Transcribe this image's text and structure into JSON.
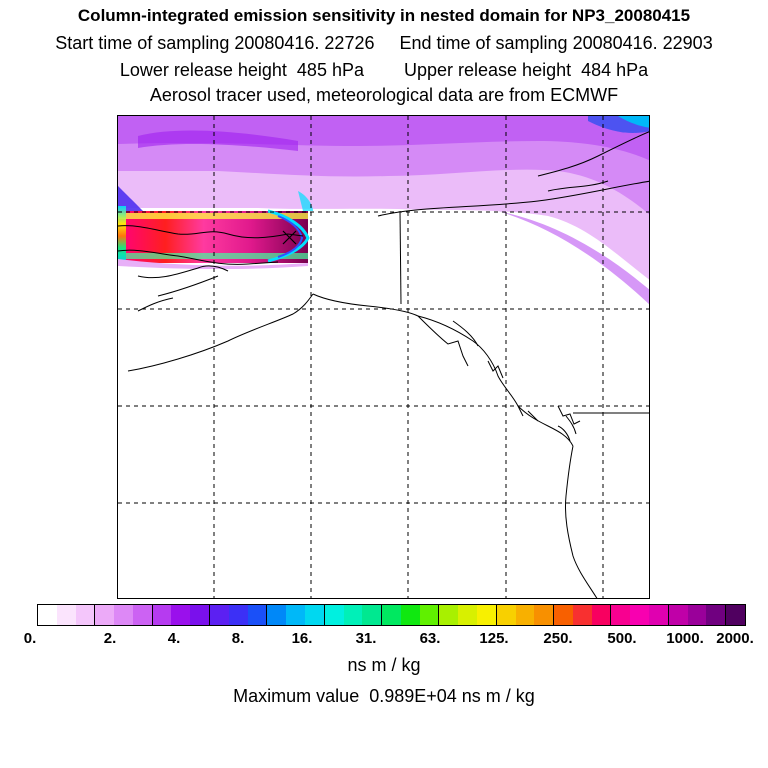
{
  "header": {
    "title": "Column-integrated emission sensitivity in nested domain for NP3_20080415",
    "line2": "Start time of sampling 20080416. 22726     End time of sampling 20080416. 22903",
    "line3": "Lower release height  485 hPa        Upper release height  484 hPa",
    "line4": "Aerosol tracer used, meteorological data are from ECMWF"
  },
  "colorbar": {
    "colors": [
      "#ffffff",
      "#fbe4fd",
      "#f4c6fb",
      "#ecaaf8",
      "#dd88f6",
      "#cc62f3",
      "#b63bf0",
      "#9a10ec",
      "#7a10ec",
      "#5c20f2",
      "#3c30f6",
      "#1a50f8",
      "#0088f8",
      "#00b8f8",
      "#00d8f0",
      "#00f0e0",
      "#00f0b8",
      "#00e890",
      "#00e860",
      "#10e810",
      "#60f000",
      "#a8f000",
      "#d8f000",
      "#f8f000",
      "#f8d000",
      "#f8b000",
      "#f89000",
      "#f86000",
      "#f83030",
      "#f80060",
      "#f80090",
      "#f800b0",
      "#e000b0",
      "#c000a8",
      "#9a009a",
      "#700080",
      "#500060"
    ],
    "tick_labels": [
      "0.",
      "2.",
      "4.",
      "8.",
      "16.",
      "31.",
      "63.",
      "125.",
      "250.",
      "500.",
      "1000.",
      "2000."
    ]
  },
  "units": "ns m / kg",
  "maximum": "Maximum value  0.989E+04 ns m / kg",
  "map": {
    "plume_colors": [
      "#ffffff",
      "#f5d6fc",
      "#e7b0f8",
      "#d488f6",
      "#bf5df2",
      "#b040f0",
      "#ff0090",
      "#ff0000",
      "#ff8c00",
      "#ffff00",
      "#00ff80",
      "#00e0ff",
      "#5050ff",
      "#c000c0"
    ]
  }
}
